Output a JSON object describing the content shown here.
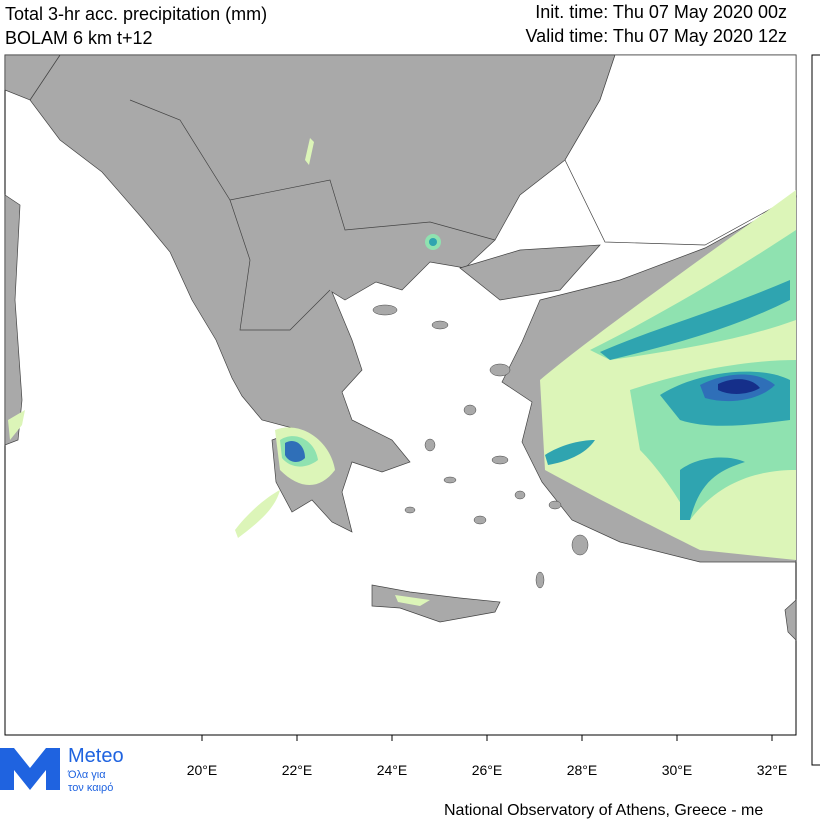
{
  "header": {
    "title_line1": "Total 3-hr acc. precipitation (mm)",
    "title_line2": "BOLAM 6 km t+12",
    "init_time": "Init. time: Thu 07 May 2020 00z",
    "valid_time": "Valid time: Thu 07 May 2020 12z"
  },
  "map": {
    "lon_labels": [
      "20°E",
      "22°E",
      "24°E",
      "26°E",
      "28°E",
      "30°E",
      "32°E"
    ]
  },
  "logo": {
    "name": "Meteo",
    "tagline_line1": "Όλα για",
    "tagline_line2": "τον καιρό"
  },
  "footer": {
    "credit": "National Observatory of Athens, Greece - me"
  }
}
